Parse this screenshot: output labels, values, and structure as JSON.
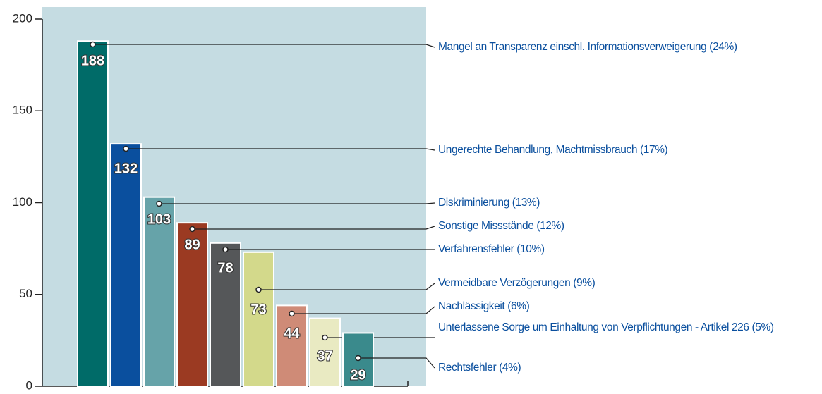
{
  "chart_data": {
    "type": "bar",
    "categories": [
      "Mangel an Transparenz einschl. Informationsverweigerung (24%)",
      "Ungerechte Behandlung, Machtmissbrauch (17%)",
      "Diskriminierung (13%)",
      "Sonstige Missstände (12%)",
      "Verfahrensfehler (10%)",
      "Vermeidbare Verzögerungen (9%)",
      "Nachlässigkeit (6%)",
      "Unterlassene Sorge um Einhaltung von Verpflichtungen - Artikel 226 (5%)",
      "Rechtsfehler (4%)"
    ],
    "values": [
      188,
      132,
      103,
      89,
      78,
      73,
      44,
      37,
      29
    ],
    "colors": [
      "#006b68",
      "#0a4f9e",
      "#66a3a9",
      "#9b3a22",
      "#555759",
      "#d3d98b",
      "#cf8b77",
      "#e9eac2",
      "#3a8a8c"
    ],
    "ylim": [
      0,
      200
    ],
    "yticks": [
      0,
      50,
      100,
      150,
      200
    ]
  }
}
